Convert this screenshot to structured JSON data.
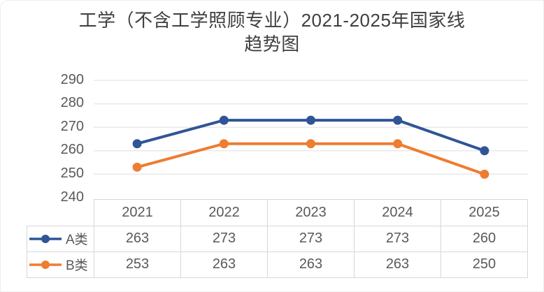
{
  "card": {
    "title_lines": [
      "工学（不含工学照顾专业）2021-2025年国家线",
      "趋势图"
    ]
  },
  "chart_data": {
    "type": "line",
    "title": "工学（不含工学照顾专业）2021-2025年国家线趋势图",
    "categories": [
      "2021",
      "2022",
      "2023",
      "2024",
      "2025"
    ],
    "series": [
      {
        "name": "A类",
        "values": [
          263,
          273,
          273,
          273,
          260
        ],
        "color": "#2F5597"
      },
      {
        "name": "B类",
        "values": [
          253,
          263,
          263,
          263,
          250
        ],
        "color": "#ED7D31"
      }
    ],
    "ylim": [
      240,
      290
    ],
    "yticks": [
      240,
      250,
      260,
      270,
      280,
      290
    ],
    "grid": "horizontal",
    "marker": "circle",
    "legend_position": "data-table-left",
    "data_table": true
  },
  "colors": {
    "gridline": "#e9e9e9",
    "table_border": "#d7d7d7",
    "axis_text": "#595959",
    "title_text": "#3f3f3f",
    "background": "#ffffff"
  }
}
